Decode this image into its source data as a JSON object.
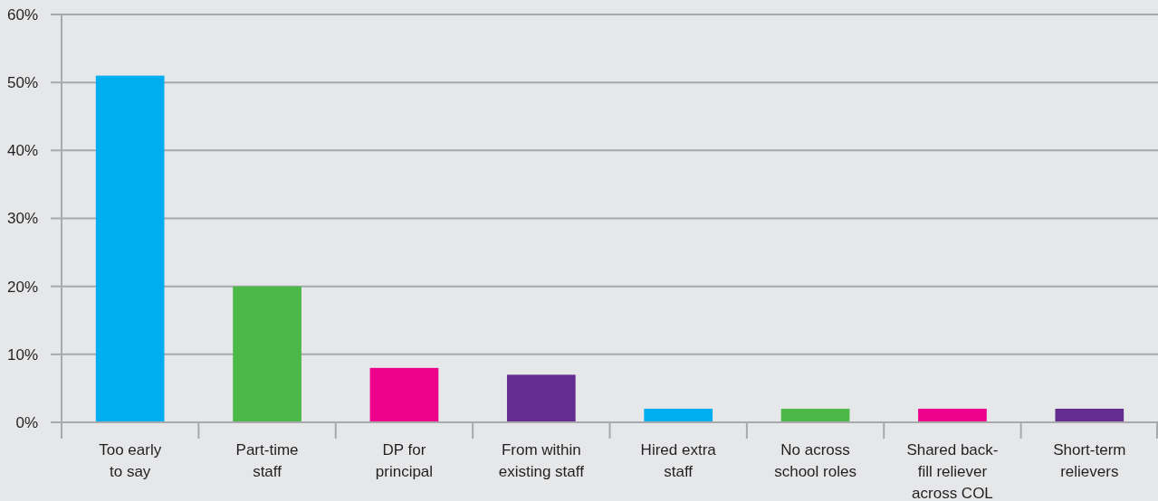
{
  "chart_data": {
    "type": "bar",
    "categories": [
      "Too early\nto say",
      "Part-time\nstaff",
      "DP for\nprincipal",
      "From within\nexisting staff",
      "Hired extra\nstaff",
      "No across\nschool roles",
      "Shared back-\nfill reliever\nacross COL",
      "Short-term\nrelievers"
    ],
    "values": [
      51,
      20,
      8,
      7,
      2,
      2,
      2,
      2
    ],
    "colors": [
      "#00adef",
      "#4cb848",
      "#ec008c",
      "#662d91",
      "#00adef",
      "#4cb848",
      "#ec008c",
      "#662d91"
    ],
    "ylim": [
      0,
      60
    ],
    "yticks": [
      {
        "value": 0,
        "label": "0%"
      },
      {
        "value": 10,
        "label": "10%"
      },
      {
        "value": 20,
        "label": "20%"
      },
      {
        "value": 30,
        "label": "30%"
      },
      {
        "value": 40,
        "label": "40%"
      },
      {
        "value": 50,
        "label": "50%"
      },
      {
        "value": 60,
        "label": "60%"
      }
    ],
    "grid": "y"
  }
}
